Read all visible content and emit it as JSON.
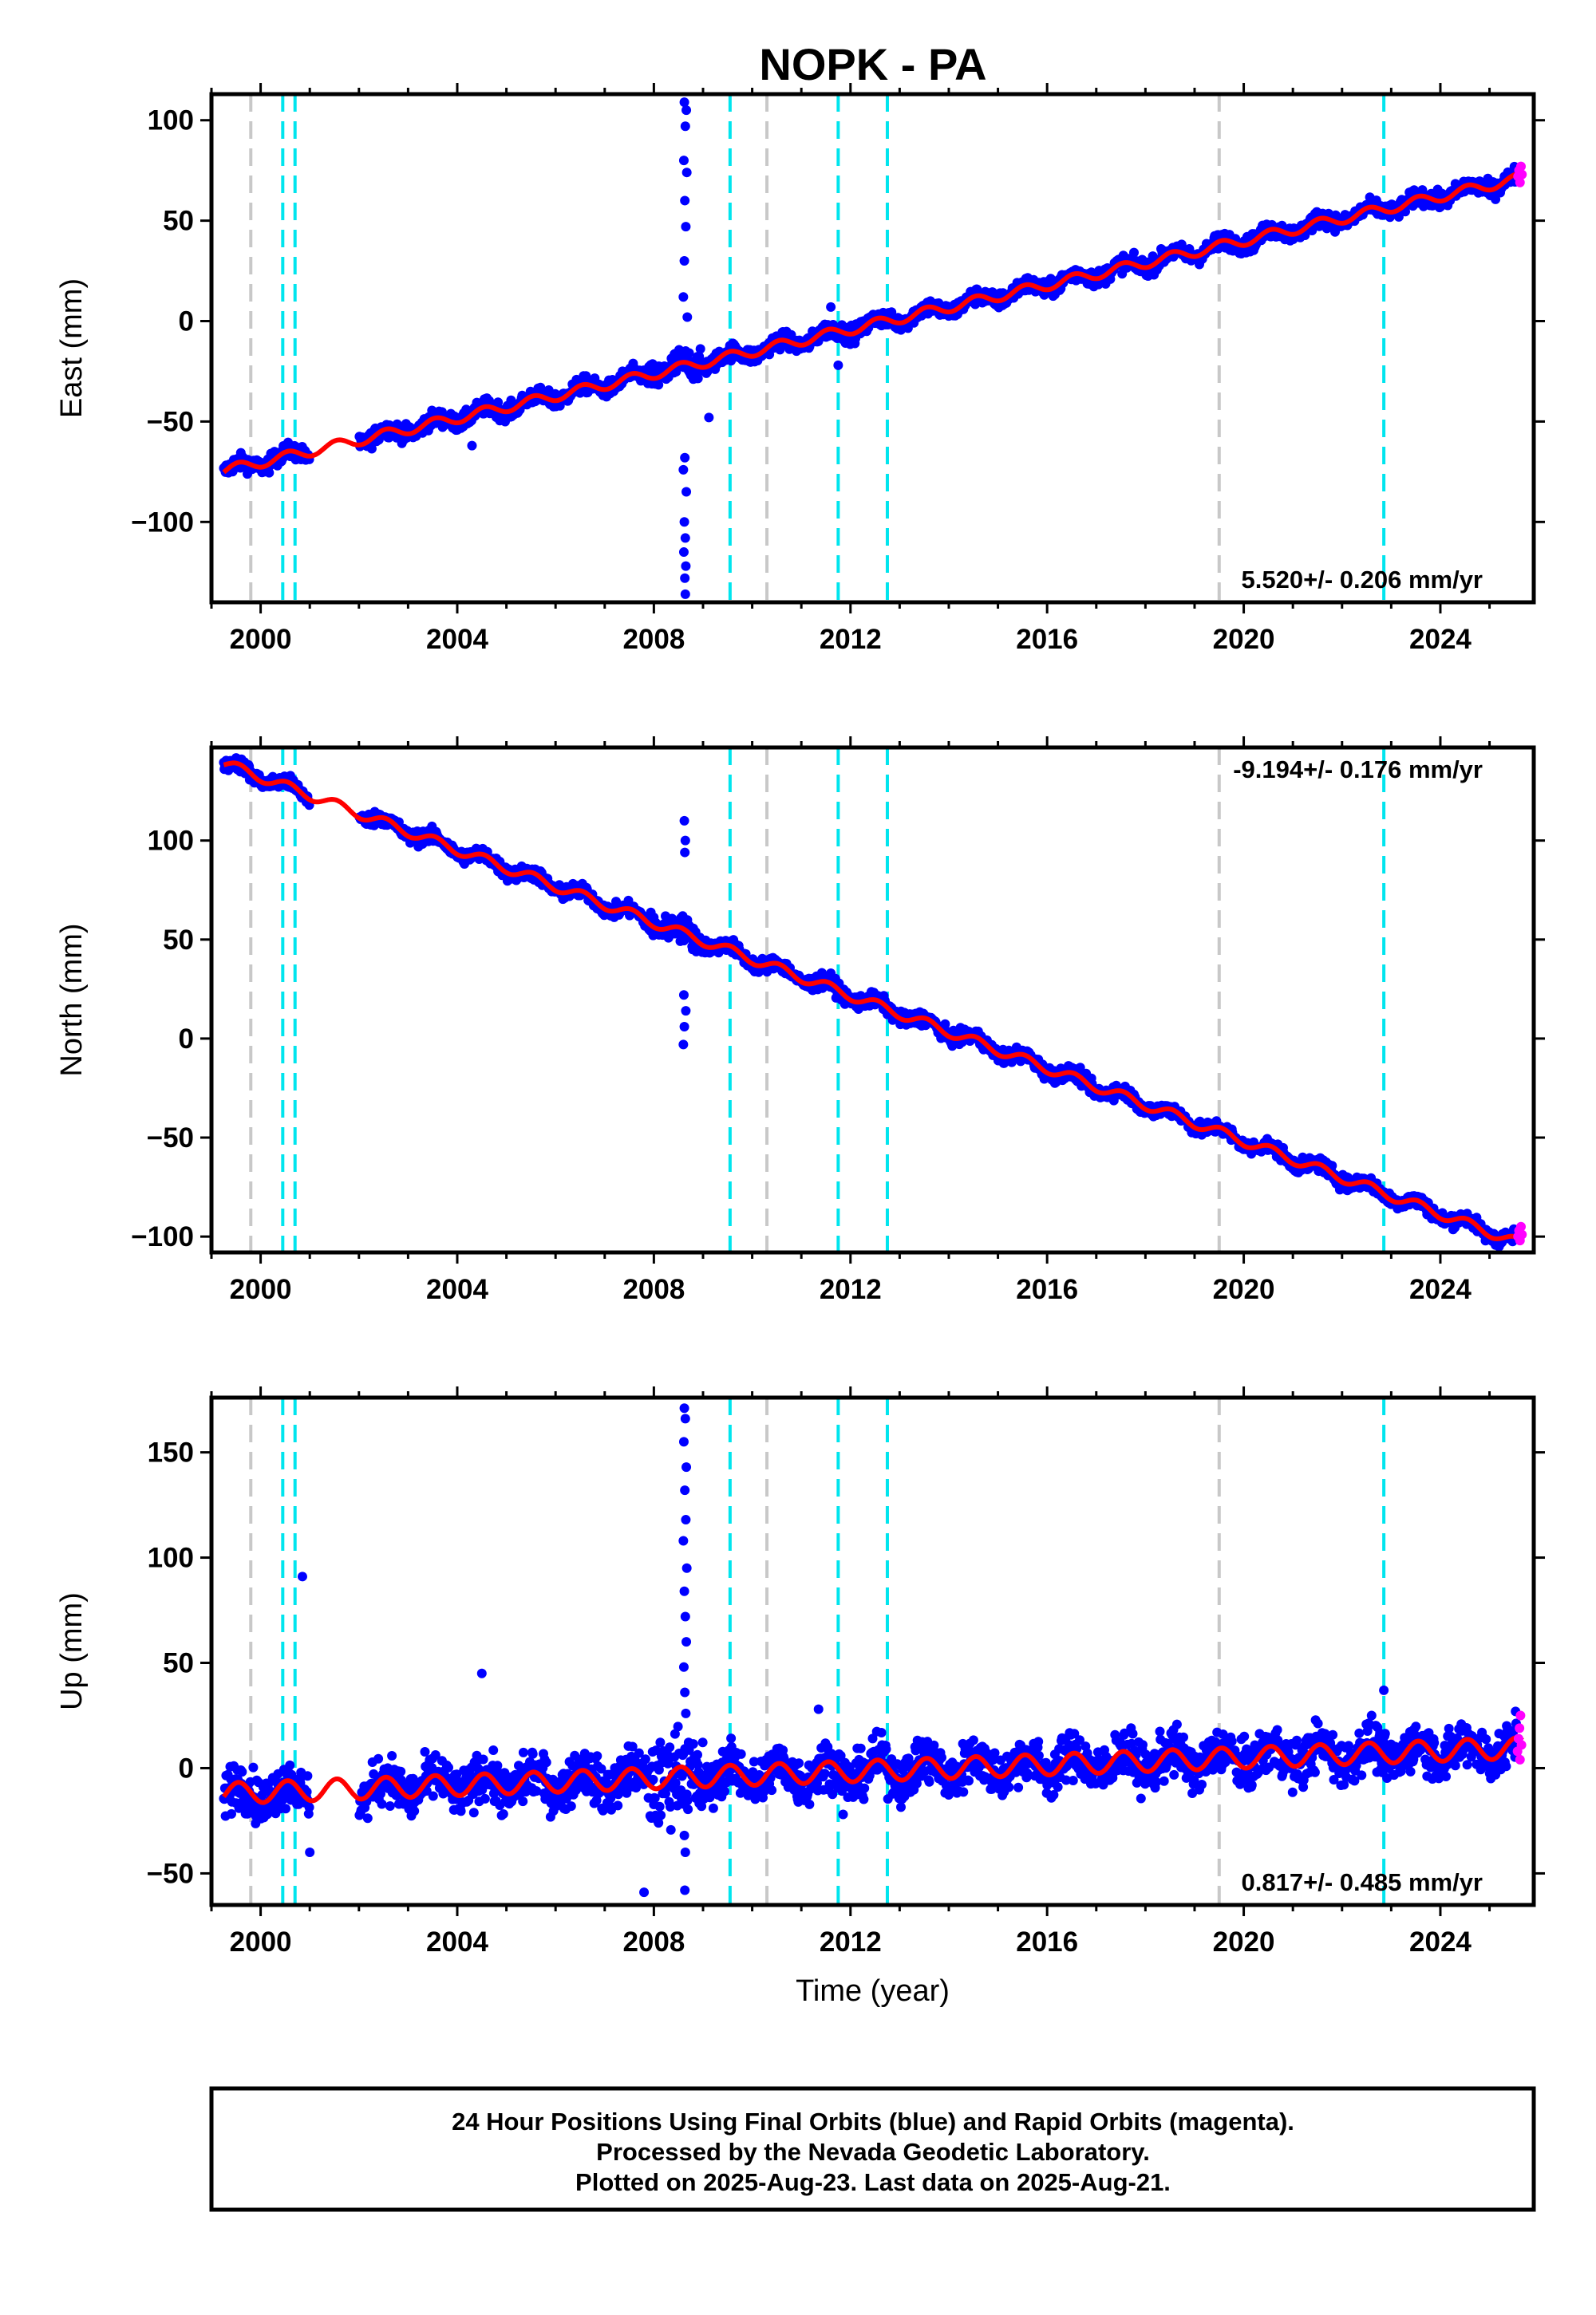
{
  "title": "NOPK - PA",
  "footer": {
    "line1": "24 Hour Positions Using Final Orbits (blue) and Rapid Orbits (magenta).",
    "line2": "Processed by the Nevada Geodetic Laboratory.",
    "line3": "Plotted on 2025-Aug-23. Last data on 2025-Aug-21."
  },
  "colors": {
    "final_orbits": "#0000ff",
    "rapid_orbits": "#ff00ff",
    "model_fit": "#ff0000",
    "equipment_change": "#00e5ee",
    "other_event": "#c8c8c8"
  },
  "chart_data": [
    {
      "type": "scatter",
      "ylabel": "East (mm)",
      "xlabel": "",
      "xlim": [
        1999.0,
        2025.9
      ],
      "ylim": [
        -140,
        113
      ],
      "xticks": [
        2000,
        2004,
        2008,
        2012,
        2016,
        2020,
        2024
      ],
      "yticks": [
        -100,
        -50,
        0,
        50,
        100
      ],
      "ytick_labels": [
        "−100",
        "−50",
        "0",
        "50",
        "100"
      ],
      "rate": "5.520+/- 0.206 mm/yr",
      "rate_position": "bottom-right",
      "model": {
        "start": 1999.25,
        "value_at_start": -74.5,
        "slope": 5.52,
        "annual_amplitude": 2.5
      },
      "scatter_amp": 4,
      "gap": [
        2001.0,
        2002.0
      ],
      "outliers": [
        {
          "x": 2008.62,
          "y": 109
        },
        {
          "x": 2008.66,
          "y": 105
        },
        {
          "x": 2008.64,
          "y": 97
        },
        {
          "x": 2008.61,
          "y": 80
        },
        {
          "x": 2008.67,
          "y": 74
        },
        {
          "x": 2008.63,
          "y": 60
        },
        {
          "x": 2008.65,
          "y": 47
        },
        {
          "x": 2008.62,
          "y": 30
        },
        {
          "x": 2008.6,
          "y": 12
        },
        {
          "x": 2008.68,
          "y": 2
        },
        {
          "x": 2008.63,
          "y": -68
        },
        {
          "x": 2008.6,
          "y": -74
        },
        {
          "x": 2008.66,
          "y": -85
        },
        {
          "x": 2008.62,
          "y": -100
        },
        {
          "x": 2008.64,
          "y": -108
        },
        {
          "x": 2008.61,
          "y": -115
        },
        {
          "x": 2008.65,
          "y": -122
        },
        {
          "x": 2008.63,
          "y": -128
        },
        {
          "x": 2008.64,
          "y": -136
        },
        {
          "x": 2009.12,
          "y": -48
        },
        {
          "x": 2004.3,
          "y": -62
        },
        {
          "x": 2011.75,
          "y": -22
        },
        {
          "x": 2011.6,
          "y": 7
        }
      ],
      "rapid": [
        {
          "x": 2025.58,
          "y": 72
        },
        {
          "x": 2025.6,
          "y": 75
        },
        {
          "x": 2025.62,
          "y": 69
        },
        {
          "x": 2025.64,
          "y": 77
        },
        {
          "x": 2025.66,
          "y": 73
        }
      ]
    },
    {
      "type": "scatter",
      "ylabel": "North (mm)",
      "xlabel": "",
      "xlim": [
        1999.0,
        2025.9
      ],
      "ylim": [
        -108,
        147
      ],
      "xticks": [
        2000,
        2004,
        2008,
        2012,
        2016,
        2020,
        2024
      ],
      "yticks": [
        -100,
        -50,
        0,
        50,
        100
      ],
      "ytick_labels": [
        "−100",
        "−50",
        "0",
        "50",
        "100"
      ],
      "rate": "-9.194+/- 0.176 mm/yr",
      "rate_position": "top-right",
      "model": {
        "start": 1999.25,
        "value_at_start": 139,
        "slope": -9.194,
        "annual_amplitude": 2.5
      },
      "scatter_amp": 3.5,
      "gap": [
        2001.0,
        2002.0
      ],
      "outliers": [
        {
          "x": 2008.62,
          "y": 110
        },
        {
          "x": 2008.64,
          "y": 100
        },
        {
          "x": 2008.63,
          "y": 94
        },
        {
          "x": 2008.61,
          "y": 22
        },
        {
          "x": 2008.65,
          "y": 14
        },
        {
          "x": 2008.62,
          "y": 6
        },
        {
          "x": 2008.6,
          "y": -3
        },
        {
          "x": 2011.5,
          "y": 30
        },
        {
          "x": 2011.6,
          "y": 33
        }
      ],
      "rapid": [
        {
          "x": 2025.58,
          "y": -100
        },
        {
          "x": 2025.6,
          "y": -97
        },
        {
          "x": 2025.62,
          "y": -102
        },
        {
          "x": 2025.64,
          "y": -95
        },
        {
          "x": 2025.66,
          "y": -99
        }
      ]
    },
    {
      "type": "scatter",
      "ylabel": "Up (mm)",
      "xlabel": "Time (year)",
      "xlim": [
        1999.0,
        2025.9
      ],
      "ylim": [
        -65,
        176
      ],
      "xticks": [
        2000,
        2004,
        2008,
        2012,
        2016,
        2020,
        2024
      ],
      "yticks": [
        -50,
        0,
        50,
        100,
        150
      ],
      "ytick_labels": [
        "−50",
        "0",
        "50",
        "100",
        "150"
      ],
      "rate": "0.817+/- 0.485 mm/yr",
      "rate_position": "bottom-right",
      "model": {
        "start": 1999.25,
        "value_at_start": -12,
        "slope": 0.817,
        "annual_amplitude": 5
      },
      "scatter_amp": 11,
      "gap": [
        2001.0,
        2002.0
      ],
      "outliers": [
        {
          "x": 2000.85,
          "y": 91
        },
        {
          "x": 2004.5,
          "y": 45
        },
        {
          "x": 2007.8,
          "y": -59
        },
        {
          "x": 2008.62,
          "y": 171
        },
        {
          "x": 2008.64,
          "y": 166
        },
        {
          "x": 2008.61,
          "y": 155
        },
        {
          "x": 2008.66,
          "y": 143
        },
        {
          "x": 2008.63,
          "y": 132
        },
        {
          "x": 2008.65,
          "y": 118
        },
        {
          "x": 2008.6,
          "y": 108
        },
        {
          "x": 2008.67,
          "y": 95
        },
        {
          "x": 2008.62,
          "y": 84
        },
        {
          "x": 2008.64,
          "y": 72
        },
        {
          "x": 2008.66,
          "y": 60
        },
        {
          "x": 2008.61,
          "y": 48
        },
        {
          "x": 2008.63,
          "y": 36
        },
        {
          "x": 2008.65,
          "y": 26
        },
        {
          "x": 2008.62,
          "y": -32
        },
        {
          "x": 2008.64,
          "y": -40
        },
        {
          "x": 2008.63,
          "y": -58
        },
        {
          "x": 2011.35,
          "y": 28
        },
        {
          "x": 2011.85,
          "y": -22
        },
        {
          "x": 2022.85,
          "y": 37
        },
        {
          "x": 2001.0,
          "y": -40
        }
      ],
      "rapid": [
        {
          "x": 2025.57,
          "y": 8
        },
        {
          "x": 2025.59,
          "y": 14
        },
        {
          "x": 2025.61,
          "y": 19
        },
        {
          "x": 2025.63,
          "y": 25
        },
        {
          "x": 2025.65,
          "y": 11
        },
        {
          "x": 2025.62,
          "y": 4
        }
      ]
    }
  ],
  "events": {
    "equipment_change": [
      2000.45,
      2000.7,
      2009.55,
      2011.75,
      2012.75,
      2022.85
    ],
    "other_event": [
      1999.8,
      2010.3,
      2019.5
    ]
  }
}
